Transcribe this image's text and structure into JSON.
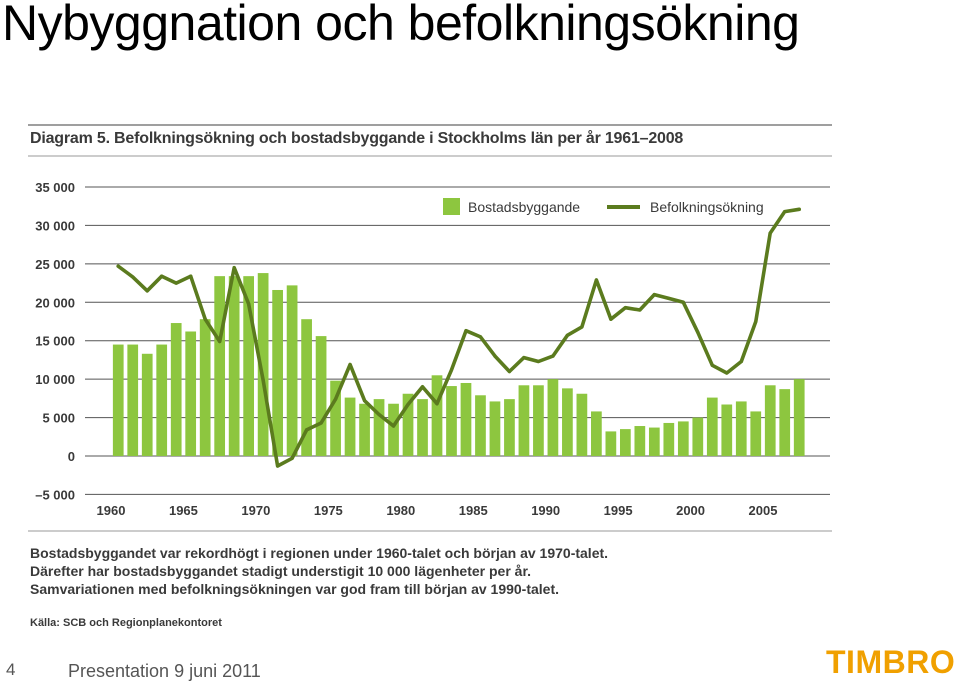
{
  "slide": {
    "title": "Nybyggnation och befolkningsökning",
    "page_number": "4",
    "footer": "Presentation  9 juni 2011",
    "logo": "TIMBRO"
  },
  "chart_data": {
    "type": "bar",
    "title": "Diagram 5. Befolkningsökning och bostadsbyggande i Stockholms län per år 1961–2008",
    "xlabel": "",
    "ylabel": "",
    "ylim": [
      -5000,
      35000
    ],
    "yticks": [
      35000,
      30000,
      25000,
      20000,
      15000,
      10000,
      5000,
      0,
      -5000
    ],
    "ytick_labels": [
      "35 000",
      "30 000",
      "25 000",
      "20 000",
      "15 000",
      "10 000",
      "5 000",
      "0",
      "–5 000"
    ],
    "x": [
      1961,
      1962,
      1963,
      1964,
      1965,
      1966,
      1967,
      1968,
      1969,
      1970,
      1971,
      1972,
      1973,
      1974,
      1975,
      1976,
      1977,
      1978,
      1979,
      1980,
      1981,
      1982,
      1983,
      1984,
      1985,
      1986,
      1987,
      1988,
      1989,
      1990,
      1991,
      1992,
      1993,
      1994,
      1995,
      1996,
      1997,
      1998,
      1999,
      2000,
      2001,
      2002,
      2003,
      2004,
      2005,
      2006,
      2007,
      2008
    ],
    "xticks": [
      1960,
      1965,
      1970,
      1975,
      1980,
      1985,
      1990,
      1995,
      2000,
      2005
    ],
    "grid": true,
    "legend_position": "top-right",
    "series": [
      {
        "name": "Bostadsbyggande",
        "kind": "bar",
        "color": "#8dc63f",
        "values": [
          14500,
          14500,
          13300,
          14500,
          17300,
          16200,
          17800,
          23400,
          23400,
          23400,
          23800,
          21600,
          22200,
          17800,
          15600,
          9800,
          7600,
          6800,
          7400,
          6800,
          8100,
          7400,
          10500,
          9100,
          9500,
          7900,
          7100,
          7400,
          9200,
          9200,
          10000,
          8800,
          8100,
          5800,
          3200,
          3500,
          3900,
          3700,
          4300,
          4500,
          5000,
          7600,
          6700,
          7100,
          5800,
          9200,
          8700,
          10000
        ]
      },
      {
        "name": "Befolkningsökning",
        "kind": "line",
        "color": "#5b7b1e",
        "values": [
          24700,
          23300,
          21500,
          23400,
          22500,
          23400,
          17800,
          14900,
          24500,
          19800,
          9900,
          -1300,
          -300,
          3400,
          4300,
          7400,
          11900,
          7200,
          5400,
          3900,
          6700,
          9000,
          6800,
          11200,
          16300,
          15500,
          13000,
          11000,
          12800,
          12300,
          13000,
          15700,
          16800,
          22900,
          17800,
          19300,
          19000,
          21000,
          20500,
          20000,
          16100,
          11800,
          10800,
          12300,
          17500,
          29000,
          31800,
          32100
        ]
      }
    ],
    "annotations": [
      "Bostadsbyggandet var rekordhögt i regionen under 1960-talet och början av 1970-talet.",
      "Därefter har bostadsbyggandet stadigt understigit 10 000 lägenheter per år.",
      "Samvariationen med befolkningsökningen var god fram till början av 1990-talet."
    ],
    "source": "Källa: SCB och Regionplanekontoret"
  }
}
